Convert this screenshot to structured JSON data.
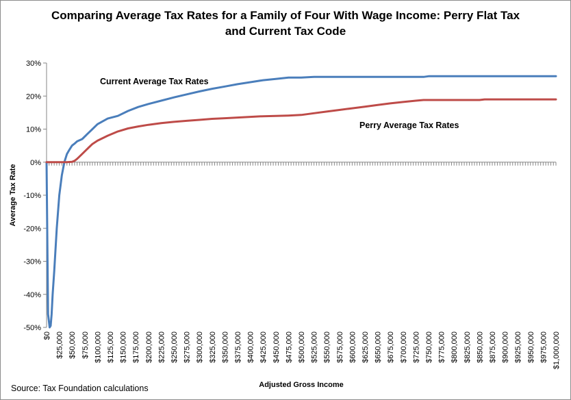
{
  "chart_data": {
    "type": "line",
    "title_lines": [
      "Comparing Average Tax Rates for a Family of Four With Wage Income: Perry Flat Tax",
      "and Current Tax Code"
    ],
    "xlabel": "Adjusted Gross Income",
    "ylabel": "Average Tax Rate",
    "source": "Source: Tax Foundation calculations",
    "xlim": [
      0,
      1000000
    ],
    "ylim": [
      -0.5,
      0.3
    ],
    "x_tick_step": 5000,
    "y_ticks": [
      -0.5,
      -0.4,
      -0.3,
      -0.2,
      -0.1,
      0,
      0.1,
      0.2,
      0.3
    ],
    "y_tick_labels": [
      "-50%",
      "-40%",
      "-30%",
      "-20%",
      "-10%",
      "0%",
      "10%",
      "20%",
      "30%"
    ],
    "x_tick_values": [
      0,
      25000,
      50000,
      75000,
      100000,
      125000,
      150000,
      175000,
      200000,
      225000,
      250000,
      275000,
      300000,
      325000,
      350000,
      375000,
      400000,
      425000,
      450000,
      475000,
      500000,
      525000,
      550000,
      575000,
      600000,
      625000,
      650000,
      675000,
      700000,
      725000,
      750000,
      775000,
      800000,
      825000,
      850000,
      875000,
      900000,
      925000,
      950000,
      975000,
      1000000
    ],
    "x_tick_labels": [
      "$0",
      "$25,000",
      "$50,000",
      "$75,000",
      "$100,000",
      "$125,000",
      "$150,000",
      "$175,000",
      "$200,000",
      "$225,000",
      "$250,000",
      "$275,000",
      "$300,000",
      "$325,000",
      "$350,000",
      "$375,000",
      "$400,000",
      "$425,000",
      "$450,000",
      "$475,000",
      "$500,000",
      "$525,000",
      "$550,000",
      "$575,000",
      "$600,000",
      "$625,000",
      "$650,000",
      "$675,000",
      "$700,000",
      "$725,000",
      "$750,000",
      "$775,000",
      "$800,000",
      "$825,000",
      "$850,000",
      "$875,000",
      "$900,000",
      "$925,000",
      "$950,000",
      "$975,000",
      "$1,000,000"
    ],
    "series": [
      {
        "name": "Current Average Tax Rates",
        "color": "#4a7ebb",
        "x": [
          0,
          3000,
          6000,
          8000,
          10000,
          12000,
          15000,
          20000,
          25000,
          30000,
          35000,
          40000,
          45000,
          50000,
          55000,
          60000,
          70000,
          80000,
          90000,
          100000,
          120000,
          140000,
          160000,
          180000,
          200000,
          225000,
          250000,
          275000,
          300000,
          325000,
          350000,
          375000,
          400000,
          425000,
          450000,
          475000,
          500000,
          525000,
          550000,
          600000,
          650000,
          700000,
          740000,
          750000,
          800000,
          850000,
          900000,
          950000,
          1000000
        ],
        "y": [
          0,
          -0.46,
          -0.5,
          -0.495,
          -0.46,
          -0.4,
          -0.33,
          -0.2,
          -0.1,
          -0.04,
          0.0,
          0.025,
          0.038,
          0.05,
          0.056,
          0.063,
          0.07,
          0.085,
          0.1,
          0.115,
          0.132,
          0.14,
          0.155,
          0.167,
          0.176,
          0.186,
          0.196,
          0.205,
          0.214,
          0.222,
          0.229,
          0.236,
          0.242,
          0.248,
          0.252,
          0.256,
          0.256,
          0.258,
          0.258,
          0.258,
          0.258,
          0.258,
          0.258,
          0.26,
          0.26,
          0.26,
          0.26,
          0.26,
          0.26
        ]
      },
      {
        "name": "Perry Average Tax Rates",
        "color": "#be4b48",
        "x": [
          0,
          20000,
          30000,
          40000,
          50000,
          55000,
          60000,
          70000,
          80000,
          90000,
          100000,
          120000,
          140000,
          160000,
          180000,
          200000,
          225000,
          250000,
          275000,
          300000,
          325000,
          350000,
          375000,
          400000,
          425000,
          450000,
          475000,
          500000,
          525000,
          550000,
          575000,
          600000,
          625000,
          650000,
          675000,
          700000,
          725000,
          740000,
          750000,
          800000,
          850000,
          860000,
          875000,
          900000,
          950000,
          1000000
        ],
        "y": [
          0,
          0,
          0,
          0,
          0.001,
          0.004,
          0.01,
          0.025,
          0.04,
          0.055,
          0.065,
          0.08,
          0.093,
          0.102,
          0.108,
          0.113,
          0.118,
          0.122,
          0.125,
          0.128,
          0.131,
          0.133,
          0.135,
          0.137,
          0.139,
          0.14,
          0.141,
          0.143,
          0.148,
          0.153,
          0.158,
          0.163,
          0.168,
          0.173,
          0.178,
          0.182,
          0.186,
          0.188,
          0.188,
          0.188,
          0.188,
          0.19,
          0.19,
          0.19,
          0.19,
          0.19
        ]
      }
    ],
    "annotations": [
      {
        "text": "Current Average Tax Rates",
        "series": 0
      },
      {
        "text": "Perry Average Tax Rates",
        "series": 1
      }
    ],
    "legend": "none",
    "grid": false
  }
}
